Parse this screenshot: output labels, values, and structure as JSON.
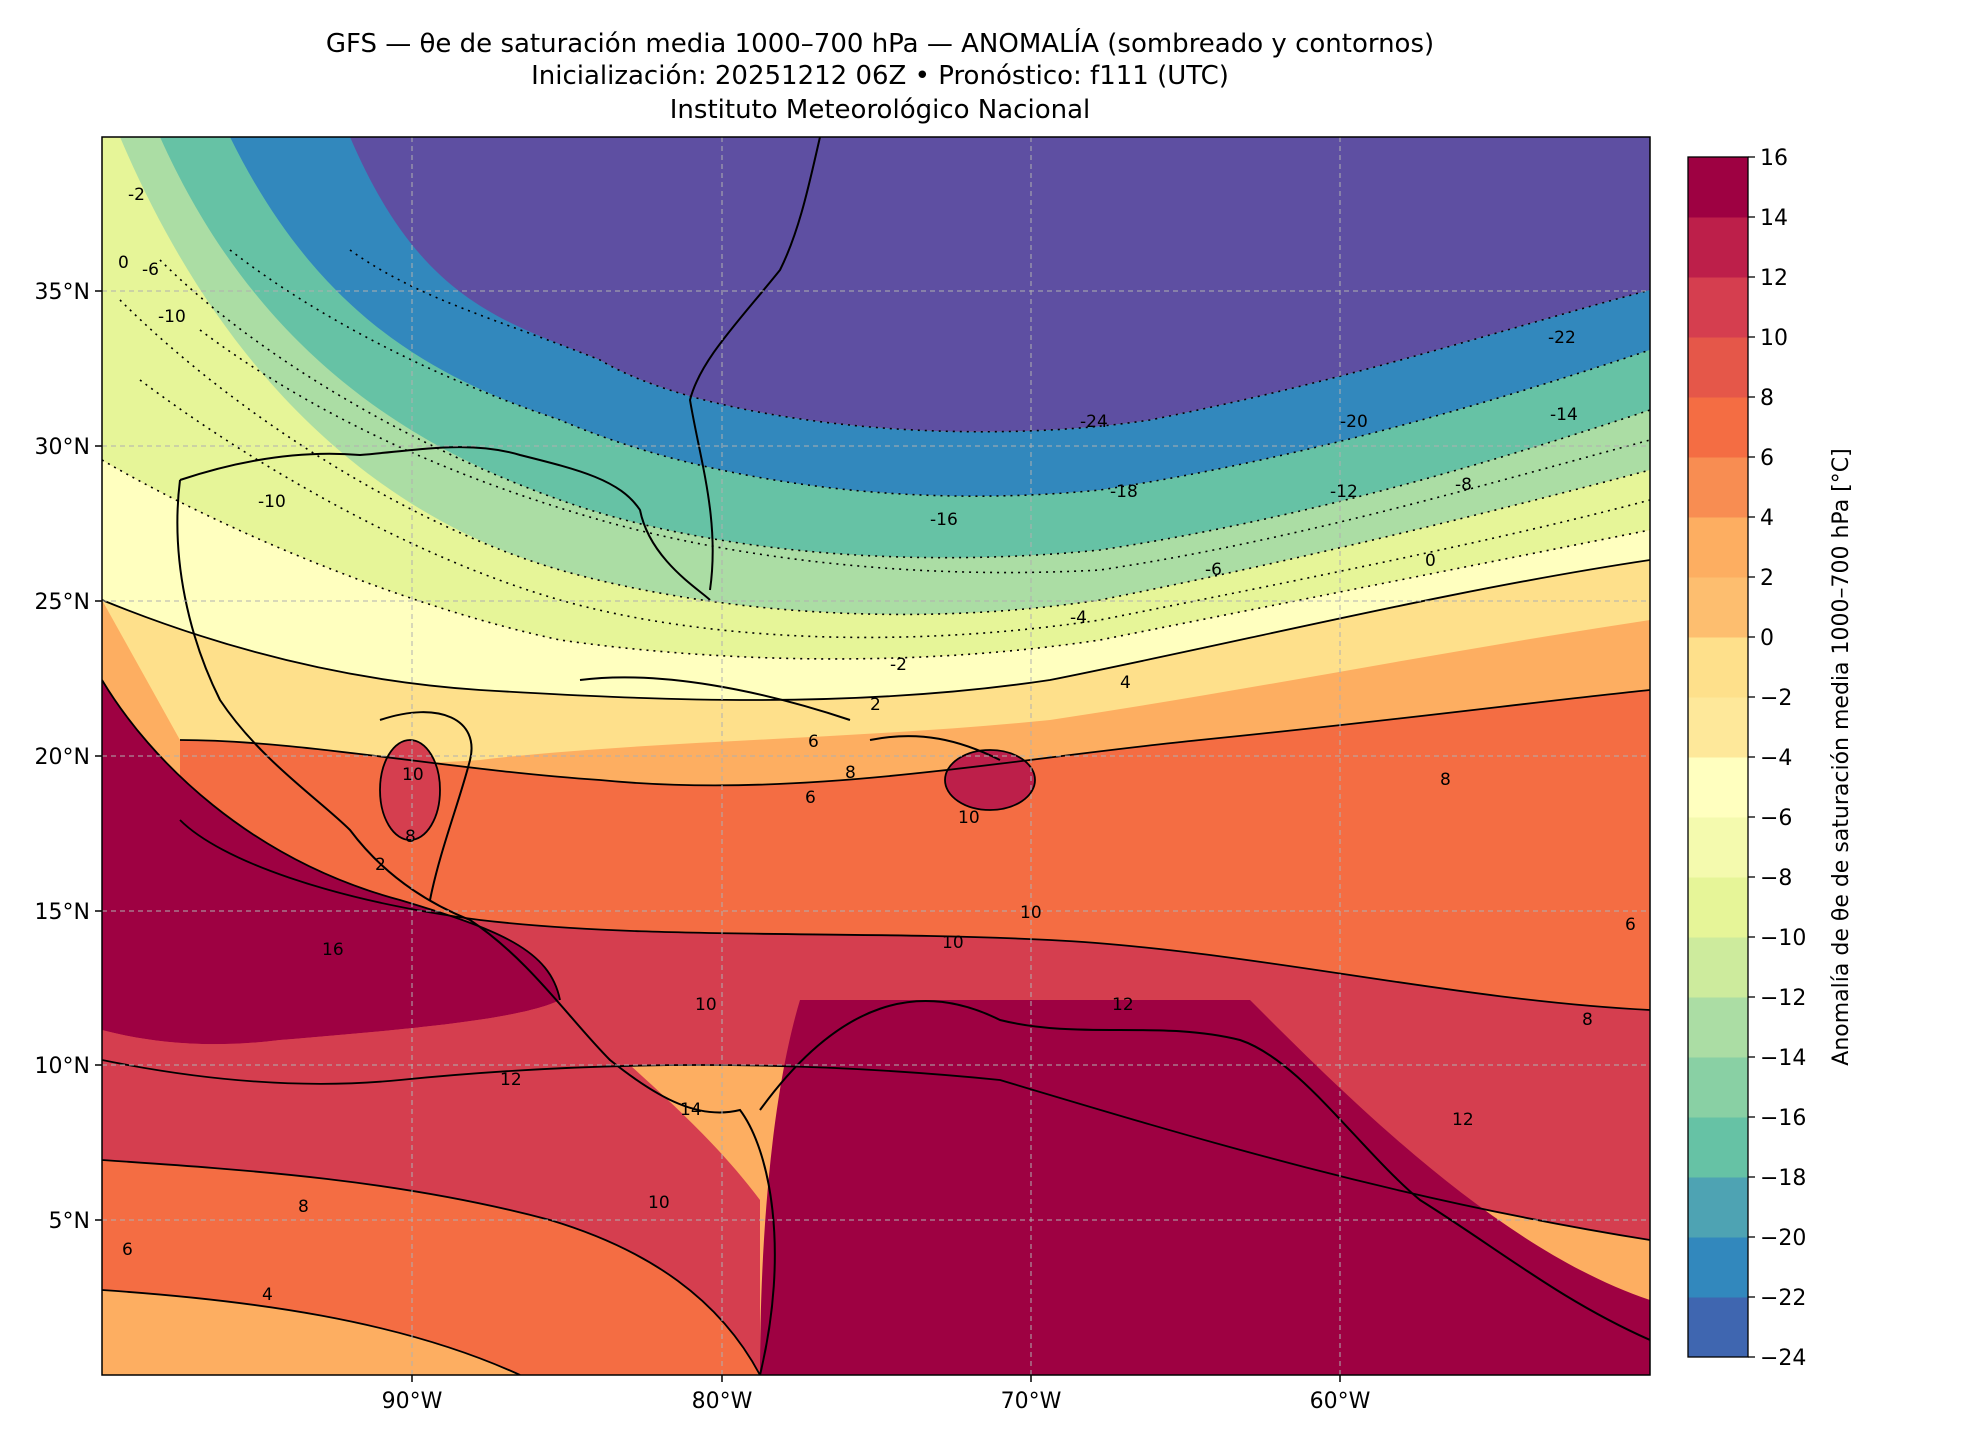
{
  "header": {
    "line1": "GFS — θe de saturación media 1000–700 hPa — ANOMALÍA (sombreado y contornos)",
    "line2": "Inicialización: 20251212 06Z   •   Pronóstico: f111 (UTC)",
    "line3": "Instituto Meteorológico Nacional"
  },
  "map": {
    "lon_range": [
      -100,
      -50
    ],
    "lat_range": [
      0,
      40
    ],
    "lon_ticks": [
      "90°W",
      "80°W",
      "70°W",
      "60°W"
    ],
    "lat_ticks": [
      "35°N",
      "30°N",
      "25°N",
      "20°N",
      "15°N",
      "10°N",
      "5°N"
    ],
    "gridlines": true,
    "contour_labels": [
      "-24",
      "-22",
      "-20",
      "-18",
      "-16",
      "-14",
      "-12",
      "-10",
      "-10",
      "-8",
      "-6",
      "-6",
      "-4",
      "-2",
      "-2",
      "0",
      "0",
      "2",
      "2",
      "4",
      "4",
      "6",
      "6",
      "6",
      "6",
      "8",
      "8",
      "8",
      "8",
      "8",
      "10",
      "10",
      "10",
      "10",
      "10",
      "10",
      "12",
      "12",
      "12",
      "14",
      "16"
    ]
  },
  "colorbar": {
    "label": "Anomalía de θe de saturación media 1000–700 hPa [°C]",
    "min": -24,
    "max": 16,
    "tick_labels": [
      "16",
      "14",
      "12",
      "10",
      "8",
      "6",
      "4",
      "2",
      "0",
      "−2",
      "−4",
      "−6",
      "−8",
      "−10",
      "−12",
      "−14",
      "−16",
      "−18",
      "−20",
      "−22",
      "−24"
    ],
    "colors": [
      "#5e4fa2",
      "#3f66b0",
      "#3288bd",
      "#4ea3b3",
      "#66c2a5",
      "#89d0a4",
      "#abdda4",
      "#cdeb9d",
      "#e6f598",
      "#f4faae",
      "#ffffbf",
      "#fee89a",
      "#fee08b",
      "#fdbe6f",
      "#fdae61",
      "#f88d52",
      "#f46d43",
      "#e55749",
      "#d53e4f",
      "#bd1f4a",
      "#9e0142"
    ]
  }
}
